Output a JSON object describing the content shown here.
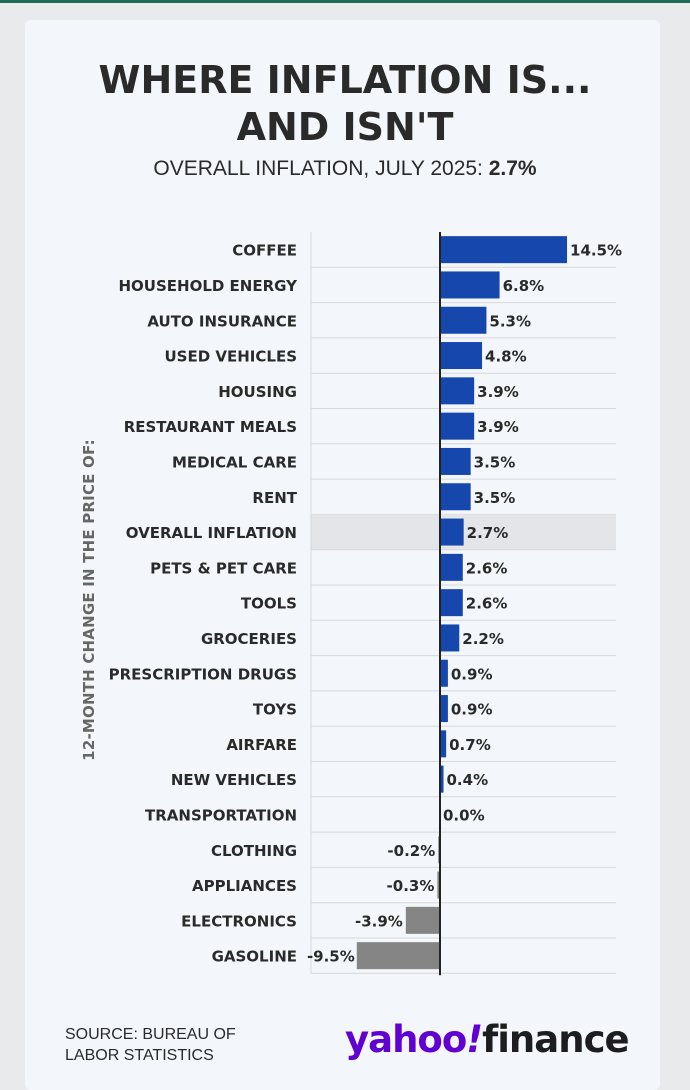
{
  "title_line1": "WHERE INFLATION IS...",
  "title_line2": "AND ISN'T",
  "subtitle_prefix": "OVERALL INFLATION, JULY 2025: ",
  "subtitle_value": "2.7%",
  "source_line1": "SOURCE: BUREAU OF",
  "source_line2": "LABOR STATISTICS",
  "logo": {
    "yahoo": "yahoo",
    "slash": "!",
    "finance": "finance"
  },
  "colors": {
    "positive": "#1547ac",
    "negative": "#858585",
    "highlight_row": "#e3e5e8",
    "axis": "#222222"
  },
  "chart_data": {
    "type": "bar",
    "orientation": "horizontal",
    "ylabel": "12-MONTH CHANGE IN THE PRICE OF:",
    "xlim": [
      -10,
      15
    ],
    "highlight": "OVERALL INFLATION",
    "categories": [
      "COFFEE",
      "HOUSEHOLD ENERGY",
      "AUTO INSURANCE",
      "USED VEHICLES",
      "HOUSING",
      "RESTAURANT MEALS",
      "MEDICAL CARE",
      "RENT",
      "OVERALL INFLATION",
      "PETS & PET CARE",
      "TOOLS",
      "GROCERIES",
      "PRESCRIPTION DRUGS",
      "TOYS",
      "AIRFARE",
      "NEW VEHICLES",
      "TRANSPORTATION",
      "CLOTHING",
      "APPLIANCES",
      "ELECTRONICS",
      "GASOLINE"
    ],
    "values": [
      14.5,
      6.8,
      5.3,
      4.8,
      3.9,
      3.9,
      3.5,
      3.5,
      2.7,
      2.6,
      2.6,
      2.2,
      0.9,
      0.9,
      0.7,
      0.4,
      0.0,
      -0.2,
      -0.3,
      -3.9,
      -9.5
    ],
    "value_labels": [
      "14.5%",
      "6.8%",
      "5.3%",
      "4.8%",
      "3.9%",
      "3.9%",
      "3.5%",
      "3.5%",
      "2.7%",
      "2.6%",
      "2.6%",
      "2.2%",
      "0.9%",
      "0.9%",
      "0.7%",
      "0.4%",
      "0.0%",
      "-0.2%",
      "-0.3%",
      "-3.9%",
      "-9.5%"
    ]
  }
}
